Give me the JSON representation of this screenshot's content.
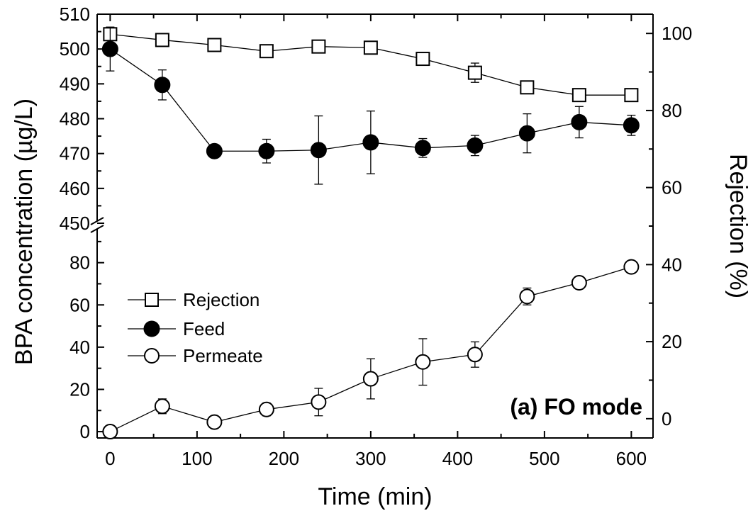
{
  "chart_data": {
    "type": "line",
    "annotation": "(a) FO mode",
    "xlabel": "Time (min)",
    "ylabel_left": "BPA concentration (µg/L)",
    "ylabel_right": "Rejection (%)",
    "x_ticks": [
      "0",
      "100",
      "200",
      "300",
      "400",
      "500",
      "600"
    ],
    "xlim": [
      -15,
      625
    ],
    "y_left_upper": {
      "range": [
        450,
        510
      ],
      "ticks": [
        "450",
        "460",
        "470",
        "480",
        "490",
        "500",
        "510"
      ]
    },
    "y_left_lower": {
      "range": [
        -3,
        97
      ],
      "ticks": [
        "0",
        "20",
        "40",
        "60",
        "80"
      ]
    },
    "y_right": {
      "range": [
        -5,
        105
      ],
      "ticks": [
        "0",
        "20",
        "40",
        "60",
        "80",
        "100"
      ]
    },
    "axis_break": true,
    "grid": false,
    "legend_position": "left, lower half",
    "series": [
      {
        "name": "Rejection",
        "axis": "right",
        "marker": "open-square",
        "x": [
          0,
          60,
          120,
          180,
          240,
          300,
          360,
          420,
          480,
          540,
          600
        ],
        "y": [
          99.8,
          98.3,
          97.0,
          95.4,
          96.6,
          96.3,
          93.4,
          89.8,
          86.0,
          84.0,
          84.0
        ],
        "err": [
          0,
          0,
          0,
          1.2,
          0,
          0.8,
          0,
          2.5,
          0,
          0.4,
          0
        ]
      },
      {
        "name": "Feed",
        "axis": "left",
        "marker": "filled-circle",
        "x": [
          0,
          60,
          120,
          180,
          240,
          300,
          360,
          420,
          480,
          540,
          600
        ],
        "y": [
          500.0,
          489.7,
          470.7,
          470.7,
          471.0,
          473.2,
          471.6,
          472.3,
          475.8,
          479.0,
          478.1
        ],
        "err": [
          6.3,
          4.3,
          0.3,
          3.4,
          9.8,
          9.0,
          2.7,
          2.9,
          5.6,
          4.5,
          2.9
        ]
      },
      {
        "name": "Permeate",
        "axis": "left",
        "marker": "open-circle",
        "x": [
          0,
          60,
          120,
          180,
          240,
          300,
          360,
          420,
          480,
          540,
          600
        ],
        "y": [
          0.0,
          12.0,
          4.5,
          10.5,
          14.0,
          25.0,
          33.0,
          36.5,
          64.0,
          70.5,
          78.0
        ],
        "err": [
          0,
          3.5,
          2.5,
          3.0,
          6.5,
          9.5,
          11.0,
          6.0,
          4.0,
          3.0,
          2.5
        ]
      }
    ]
  }
}
